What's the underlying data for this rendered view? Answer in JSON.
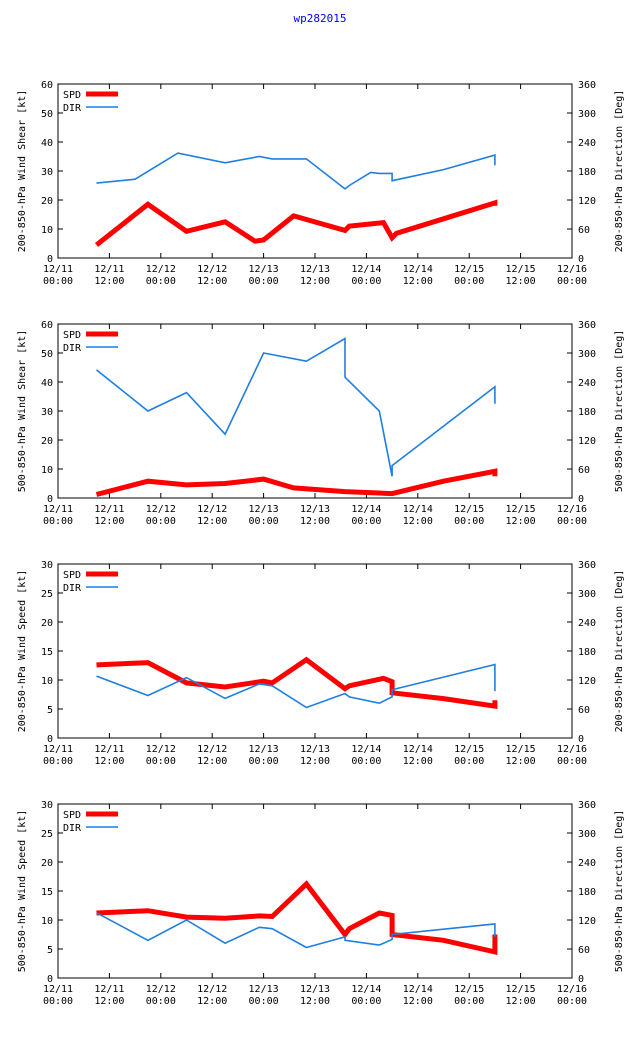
{
  "page_title": "wp282015",
  "colors": {
    "spd": "#ff0000",
    "dir": "#1f7fdf",
    "axis": "#000000"
  },
  "x_ticks": [
    {
      "day": "12/11",
      "time": "00:00"
    },
    {
      "day": "12/11",
      "time": "12:00"
    },
    {
      "day": "12/12",
      "time": "00:00"
    },
    {
      "day": "12/12",
      "time": "12:00"
    },
    {
      "day": "12/13",
      "time": "00:00"
    },
    {
      "day": "12/13",
      "time": "12:00"
    },
    {
      "day": "12/14",
      "time": "00:00"
    },
    {
      "day": "12/14",
      "time": "12:00"
    },
    {
      "day": "12/15",
      "time": "00:00"
    },
    {
      "day": "12/15",
      "time": "12:00"
    },
    {
      "day": "12/16",
      "time": "00:00"
    }
  ],
  "chart_data": [
    {
      "type": "line",
      "ylabel": "200-850-hPa Wind Shear [kt]",
      "y2label": "200-850-hPa Direction [Deg]",
      "ylim": [
        0,
        60
      ],
      "y2lim": [
        0,
        360
      ],
      "yticks": [
        0,
        10,
        20,
        30,
        40,
        50,
        60
      ],
      "y2ticks": [
        0,
        60,
        120,
        180,
        240,
        300,
        360
      ],
      "xlim": [
        0,
        120
      ],
      "legend": [
        "SPD",
        "DIR"
      ],
      "series": [
        {
          "name": "SPD",
          "axis": "left",
          "x": [
            9,
            21,
            30,
            39,
            46,
            48,
            55,
            67,
            68,
            76,
            78,
            79,
            90,
            102,
            102
          ],
          "y": [
            4.5,
            18.5,
            9.2,
            12.5,
            5.8,
            6.2,
            14.5,
            9.5,
            11,
            12.2,
            7,
            8.5,
            13.5,
            19,
            18
          ]
        },
        {
          "name": "DIR",
          "axis": "right",
          "x": [
            9,
            18,
            28,
            39,
            47,
            50,
            58,
            67,
            68,
            73,
            75,
            78,
            78,
            90,
            102,
            102
          ],
          "y": [
            155,
            163,
            217,
            197,
            210,
            205,
            205,
            143,
            150,
            177,
            175,
            175,
            160,
            183,
            213,
            192
          ]
        }
      ]
    },
    {
      "type": "line",
      "ylabel": "500-850-hPa Wind Shear [kt]",
      "y2label": "500-850-hPa Direction [Deg]",
      "ylim": [
        0,
        60
      ],
      "y2lim": [
        0,
        360
      ],
      "yticks": [
        0,
        10,
        20,
        30,
        40,
        50,
        60
      ],
      "y2ticks": [
        0,
        60,
        120,
        180,
        240,
        300,
        360
      ],
      "xlim": [
        0,
        120
      ],
      "legend": [
        "SPD",
        "DIR"
      ],
      "series": [
        {
          "name": "SPD",
          "axis": "left",
          "x": [
            9,
            21,
            30,
            39,
            48,
            55,
            67,
            78,
            90,
            102,
            102
          ],
          "y": [
            1.2,
            5.8,
            4.5,
            5,
            6.5,
            3.5,
            2.2,
            1.5,
            5.8,
            9.2,
            7.5
          ]
        },
        {
          "name": "DIR",
          "axis": "right",
          "x": [
            9,
            21,
            30,
            39,
            48,
            58,
            67,
            67,
            75,
            78,
            78,
            102,
            102
          ],
          "y": [
            265,
            180,
            218,
            132,
            300,
            283,
            330,
            250,
            180,
            45,
            67,
            230,
            195
          ]
        }
      ]
    },
    {
      "type": "line",
      "ylabel": "200-850-hPa Wind Speed [kt]",
      "y2label": "200-850-hPa Direction [Deg]",
      "ylim": [
        0,
        30
      ],
      "y2lim": [
        0,
        360
      ],
      "yticks": [
        0,
        5,
        10,
        15,
        20,
        25,
        30
      ],
      "y2ticks": [
        0,
        60,
        120,
        180,
        240,
        300,
        360
      ],
      "xlim": [
        0,
        120
      ],
      "legend": [
        "SPD",
        "DIR"
      ],
      "series": [
        {
          "name": "SPD",
          "axis": "left",
          "x": [
            9,
            21,
            30,
            39,
            48,
            50,
            58,
            67,
            68,
            76,
            78,
            78,
            90,
            102,
            102
          ],
          "y": [
            12.6,
            13,
            9.5,
            8.8,
            9.8,
            9.5,
            13.5,
            8.5,
            9,
            10.3,
            9.7,
            7.8,
            6.8,
            5.5,
            6.5
          ]
        },
        {
          "name": "DIR",
          "axis": "right",
          "x": [
            9,
            21,
            30,
            39,
            47,
            50,
            58,
            67,
            68,
            75,
            78,
            78,
            102,
            102
          ],
          "y": [
            128,
            88,
            125,
            82,
            112,
            108,
            63,
            92,
            85,
            72,
            85,
            100,
            152,
            97
          ]
        }
      ]
    },
    {
      "type": "line",
      "ylabel": "500-850-hPa Wind Speed [kt]",
      "y2label": "500-850-hPa Direction [Deg]",
      "ylim": [
        0,
        30
      ],
      "y2lim": [
        0,
        360
      ],
      "yticks": [
        0,
        5,
        10,
        15,
        20,
        25,
        30
      ],
      "y2ticks": [
        0,
        60,
        120,
        180,
        240,
        300,
        360
      ],
      "xlim": [
        0,
        120
      ],
      "legend": [
        "SPD",
        "DIR"
      ],
      "series": [
        {
          "name": "SPD",
          "axis": "left",
          "x": [
            9,
            21,
            30,
            39,
            47,
            50,
            58,
            67,
            68,
            75,
            78,
            78,
            90,
            102,
            102
          ],
          "y": [
            11.2,
            11.6,
            10.5,
            10.3,
            10.7,
            10.6,
            16.2,
            7.5,
            8.5,
            11.2,
            10.8,
            7.5,
            6.5,
            4.5,
            7.5
          ]
        },
        {
          "name": "DIR",
          "axis": "right",
          "x": [
            9,
            21,
            30,
            39,
            47,
            50,
            58,
            67,
            67,
            75,
            78,
            78,
            102,
            102
          ],
          "y": [
            135,
            78,
            120,
            72,
            105,
            102,
            63,
            85,
            78,
            68,
            80,
            90,
            112,
            85
          ]
        }
      ]
    }
  ]
}
